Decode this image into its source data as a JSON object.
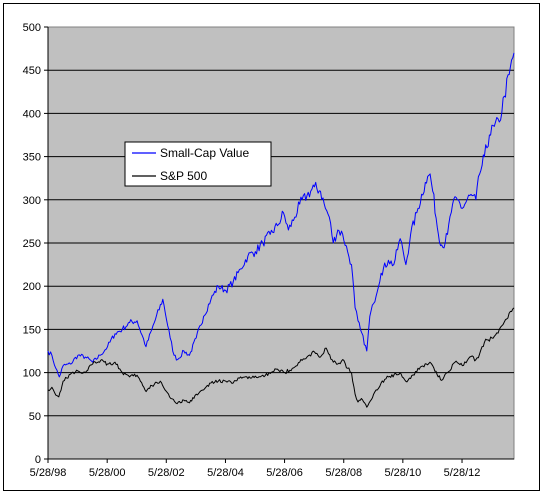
{
  "chart_data": {
    "type": "line",
    "title": "",
    "xlabel": "",
    "ylabel": "",
    "ylim": [
      0,
      500
    ],
    "y_ticks": [
      0,
      50,
      100,
      150,
      200,
      250,
      300,
      350,
      400,
      450,
      500
    ],
    "x_tick_labels": [
      "5/28/98",
      "5/28/00",
      "5/28/02",
      "5/28/04",
      "5/28/06",
      "5/28/08",
      "5/28/10",
      "5/28/12"
    ],
    "x_range": [
      "1998-05-28",
      "2014-03-01"
    ],
    "grid": "horizontal",
    "plot_background": "#c0c0c0",
    "legend_position": "upper-left",
    "series": [
      {
        "name": "Small-Cap Value",
        "color": "#0000ff",
        "x": [
          "1998-05-28",
          "1998-07-15",
          "1998-09-01",
          "1998-10-15",
          "1998-12-01",
          "1999-03-01",
          "1999-06-01",
          "1999-09-01",
          "1999-12-01",
          "2000-03-01",
          "2000-06-01",
          "2000-09-01",
          "2000-12-01",
          "2001-03-01",
          "2001-06-01",
          "2001-09-20",
          "2001-12-01",
          "2002-04-15",
          "2002-07-15",
          "2002-09-01",
          "2002-10-15",
          "2003-01-01",
          "2003-03-10",
          "2003-06-01",
          "2003-09-01",
          "2003-12-01",
          "2004-03-01",
          "2004-06-01",
          "2004-09-01",
          "2004-12-01",
          "2005-03-01",
          "2005-06-01",
          "2005-09-01",
          "2005-12-01",
          "2006-03-01",
          "2006-05-15",
          "2006-07-15",
          "2006-10-01",
          "2006-12-01",
          "2007-03-01",
          "2007-06-01",
          "2007-08-15",
          "2007-10-15",
          "2007-12-01",
          "2008-01-20",
          "2008-03-15",
          "2008-05-15",
          "2008-07-15",
          "2008-09-01",
          "2008-10-15",
          "2008-11-20",
          "2008-12-20",
          "2009-03-09",
          "2009-04-15",
          "2009-06-01",
          "2009-09-01",
          "2009-12-01",
          "2010-02-05",
          "2010-04-25",
          "2010-06-01",
          "2010-07-05",
          "2010-09-01",
          "2010-12-01",
          "2011-03-01",
          "2011-04-30",
          "2011-06-01",
          "2011-08-10",
          "2011-10-03",
          "2011-12-01",
          "2012-02-01",
          "2012-04-01",
          "2012-06-01",
          "2012-09-01",
          "2012-11-15",
          "2013-01-01",
          "2013-03-01",
          "2013-05-01",
          "2013-07-01",
          "2013-09-01",
          "2013-11-01",
          "2014-01-01",
          "2014-03-01"
        ],
        "values": [
          125,
          120,
          105,
          95,
          108,
          110,
          120,
          118,
          112,
          120,
          130,
          145,
          150,
          158,
          160,
          130,
          150,
          185,
          140,
          120,
          115,
          125,
          120,
          140,
          165,
          185,
          200,
          195,
          205,
          220,
          235,
          240,
          250,
          260,
          270,
          285,
          265,
          280,
          295,
          305,
          315,
          310,
          290,
          280,
          250,
          265,
          260,
          240,
          225,
          175,
          160,
          150,
          125,
          165,
          180,
          215,
          230,
          225,
          255,
          240,
          225,
          260,
          290,
          320,
          330,
          310,
          260,
          245,
          260,
          295,
          300,
          290,
          305,
          300,
          330,
          350,
          375,
          385,
          390,
          420,
          445,
          470
        ]
      },
      {
        "name": "S&P 500",
        "color": "#000000",
        "x": [
          "1998-05-28",
          "1998-07-15",
          "1998-09-01",
          "1998-10-08",
          "1998-12-01",
          "1999-03-01",
          "1999-06-01",
          "1999-09-01",
          "1999-12-01",
          "2000-03-24",
          "2000-06-01",
          "2000-09-01",
          "2000-12-01",
          "2001-03-01",
          "2001-06-01",
          "2001-09-21",
          "2001-12-01",
          "2002-03-15",
          "2002-07-23",
          "2002-10-09",
          "2003-01-01",
          "2003-03-11",
          "2003-06-01",
          "2003-09-01",
          "2003-12-01",
          "2004-03-01",
          "2004-06-01",
          "2004-09-01",
          "2004-12-01",
          "2005-03-01",
          "2005-06-01",
          "2005-09-01",
          "2005-12-01",
          "2006-03-01",
          "2006-06-01",
          "2006-09-01",
          "2006-12-01",
          "2007-03-01",
          "2007-06-01",
          "2007-08-15",
          "2007-10-09",
          "2008-01-20",
          "2008-03-15",
          "2008-05-15",
          "2008-07-15",
          "2008-09-01",
          "2008-10-15",
          "2008-11-20",
          "2009-01-01",
          "2009-03-09",
          "2009-06-01",
          "2009-09-01",
          "2009-12-01",
          "2010-04-23",
          "2010-07-02",
          "2010-09-01",
          "2010-12-01",
          "2011-04-29",
          "2011-06-01",
          "2011-08-08",
          "2011-10-03",
          "2011-12-01",
          "2012-03-01",
          "2012-06-01",
          "2012-09-01",
          "2012-11-15",
          "2013-01-01",
          "2013-03-01",
          "2013-06-01",
          "2013-09-01",
          "2013-12-01",
          "2014-03-01"
        ],
        "values": [
          80,
          83,
          74,
          72,
          90,
          98,
          102,
          100,
          110,
          115,
          110,
          112,
          100,
          95,
          97,
          78,
          85,
          90,
          70,
          64,
          68,
          65,
          75,
          80,
          88,
          90,
          90,
          88,
          95,
          93,
          96,
          97,
          99,
          104,
          100,
          105,
          112,
          118,
          124,
          118,
          128,
          112,
          110,
          115,
          105,
          100,
          75,
          66,
          70,
          60,
          75,
          88,
          95,
          100,
          90,
          93,
          105,
          112,
          108,
          95,
          92,
          100,
          112,
          108,
          118,
          115,
          122,
          135,
          140,
          150,
          162,
          175
        ]
      }
    ]
  }
}
